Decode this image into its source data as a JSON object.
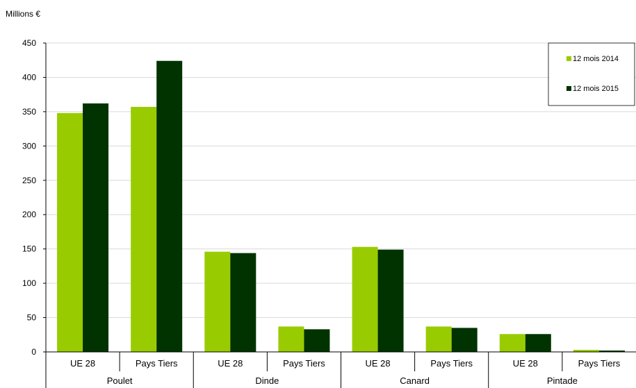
{
  "chart_data": {
    "type": "bar",
    "ylabel": "Millions €",
    "ylim": [
      0,
      450
    ],
    "yticks": [
      0,
      50,
      100,
      150,
      200,
      250,
      300,
      350,
      400,
      450
    ],
    "grid": true,
    "legend_position": "top-right",
    "groups": [
      "Poulet",
      "Dinde",
      "Canard",
      "Pintade"
    ],
    "categories": [
      "UE 28",
      "Pays Tiers",
      "UE 28",
      "Pays Tiers",
      "UE 28",
      "Pays Tiers",
      "UE 28",
      "Pays Tiers"
    ],
    "series": [
      {
        "name": "12 mois 2014",
        "color": "#99cc00",
        "values": [
          348,
          357,
          146,
          37,
          153,
          37,
          26,
          3
        ]
      },
      {
        "name": "12 mois 2015",
        "color": "#003300",
        "values": [
          362,
          424,
          144,
          33,
          149,
          35,
          26,
          2
        ]
      }
    ]
  }
}
